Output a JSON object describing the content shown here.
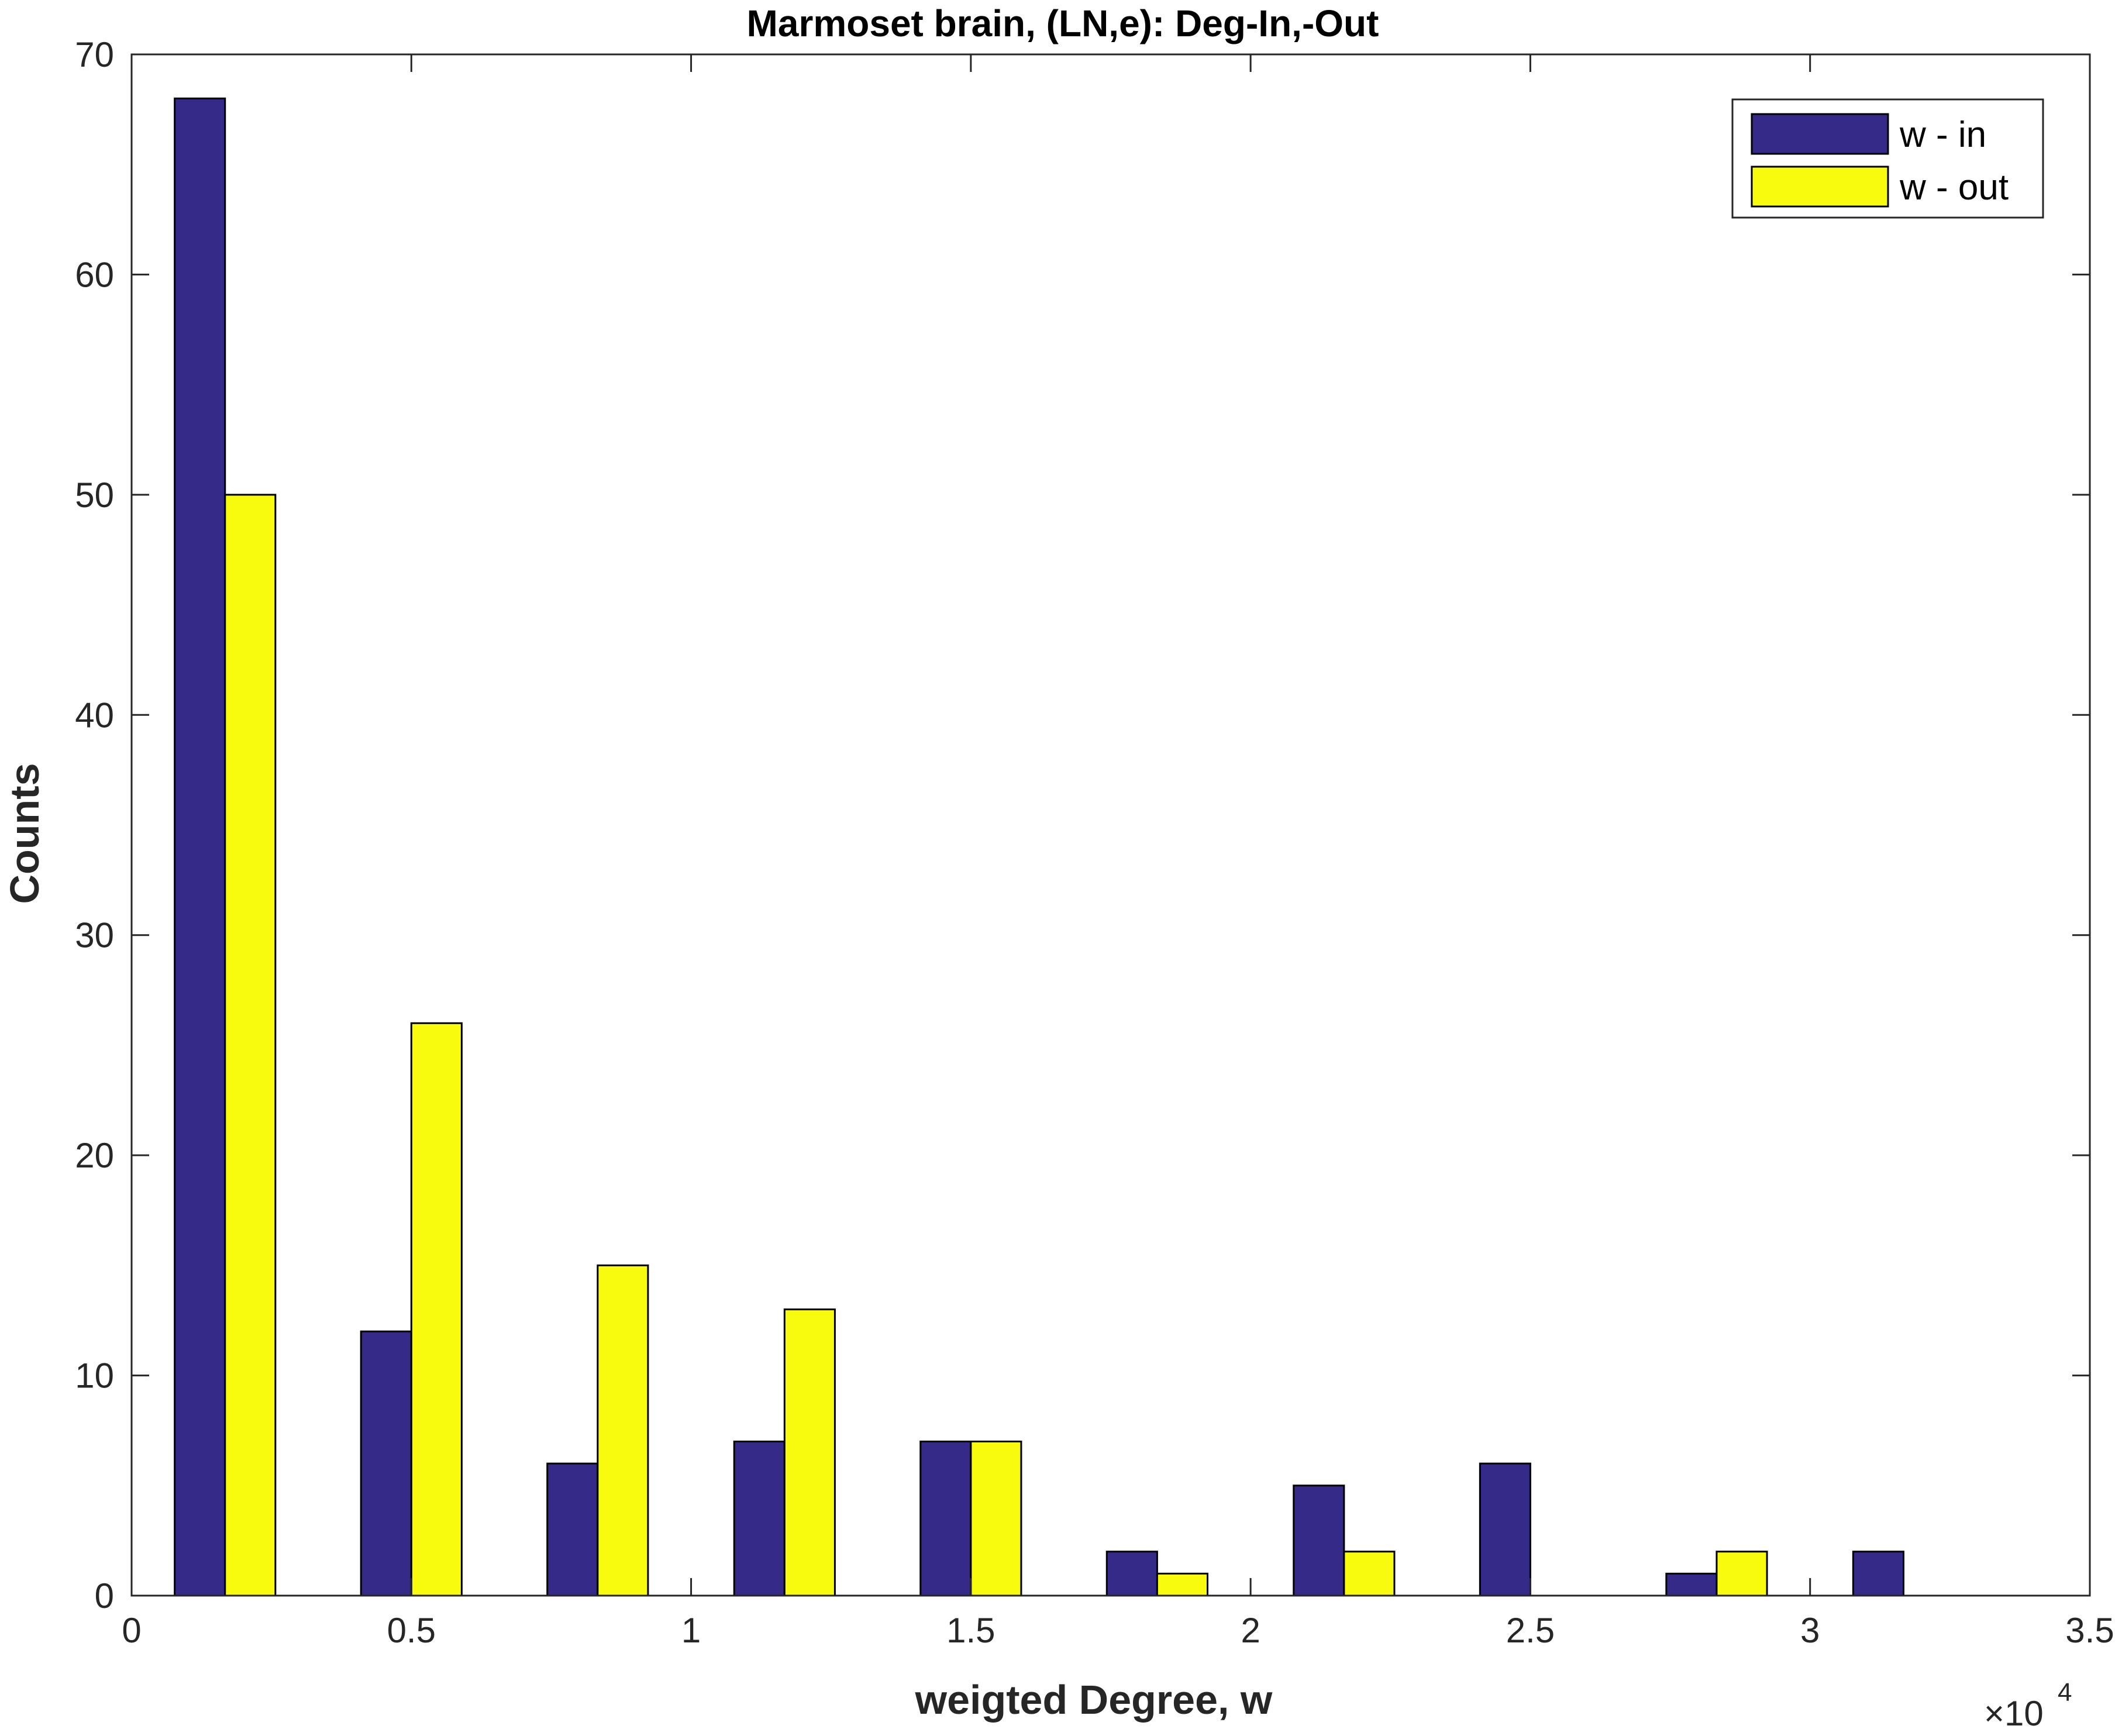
{
  "chart_data": {
    "type": "bar",
    "title": "Marmoset brain, (LN,e): Deg-In,-Out",
    "xlabel": "weigted Degree, w",
    "ylabel": "Counts",
    "x_exponent_base": "×10",
    "x_exponent_power": "4",
    "xlim": [
      0,
      35000
    ],
    "ylim": [
      0,
      70
    ],
    "x_ticks": [
      0,
      5000,
      10000,
      15000,
      20000,
      25000,
      30000,
      35000
    ],
    "x_tick_labels": [
      "0",
      "0.5",
      "1",
      "1.5",
      "2",
      "2.5",
      "3",
      "3.5"
    ],
    "y_ticks": [
      0,
      10,
      20,
      30,
      40,
      50,
      60,
      70
    ],
    "y_tick_labels": [
      "0",
      "10",
      "20",
      "30",
      "40",
      "50",
      "60",
      "70"
    ],
    "bin_centers": [
      1670,
      5000,
      8330,
      11670,
      15000,
      18330,
      21670,
      25000,
      28330,
      31670
    ],
    "series": [
      {
        "name": "w - in",
        "color": "#352a87",
        "values": [
          68,
          12,
          6,
          7,
          7,
          2,
          5,
          6,
          1,
          2
        ]
      },
      {
        "name": "w - out",
        "color": "#f9fb0e",
        "values": [
          50,
          26,
          15,
          13,
          7,
          1,
          2,
          0,
          2,
          0
        ]
      }
    ],
    "legend_position": "top-right",
    "grid": false
  }
}
